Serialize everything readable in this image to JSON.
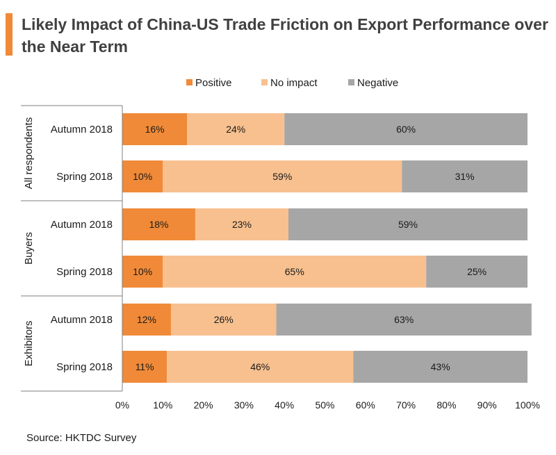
{
  "title": "Likely Impact of China-US Trade Friction on Export Performance over the Near Term",
  "source": "Source: HKTDC Survey",
  "colors": {
    "accent": "#f08a38",
    "positive": "#f08a38",
    "no_impact": "#f8c08f",
    "negative": "#a6a6a6"
  },
  "chart_data": {
    "type": "bar",
    "orientation": "horizontal",
    "stacked": "percent",
    "groups": [
      {
        "label": "All respondents",
        "categories": [
          "Autumn 2018",
          "Spring 2018"
        ]
      },
      {
        "label": "Buyers",
        "categories": [
          "Autumn 2018",
          "Spring 2018"
        ]
      },
      {
        "label": "Exhibitors",
        "categories": [
          "Autumn 2018",
          "Spring 2018"
        ]
      }
    ],
    "series": [
      {
        "name": "Positive",
        "color": "#f08a38",
        "values": [
          16,
          10,
          18,
          10,
          12,
          11
        ]
      },
      {
        "name": "No impact",
        "color": "#f8c08f",
        "values": [
          24,
          59,
          23,
          65,
          26,
          46
        ]
      },
      {
        "name": "Negative",
        "color": "#a6a6a6",
        "values": [
          60,
          31,
          59,
          25,
          63,
          43
        ]
      }
    ],
    "xlim": [
      0,
      100
    ],
    "xticks": [
      "0%",
      "10%",
      "20%",
      "30%",
      "40%",
      "50%",
      "60%",
      "70%",
      "80%",
      "90%",
      "100%"
    ],
    "legend_position": "top",
    "grid": false
  }
}
